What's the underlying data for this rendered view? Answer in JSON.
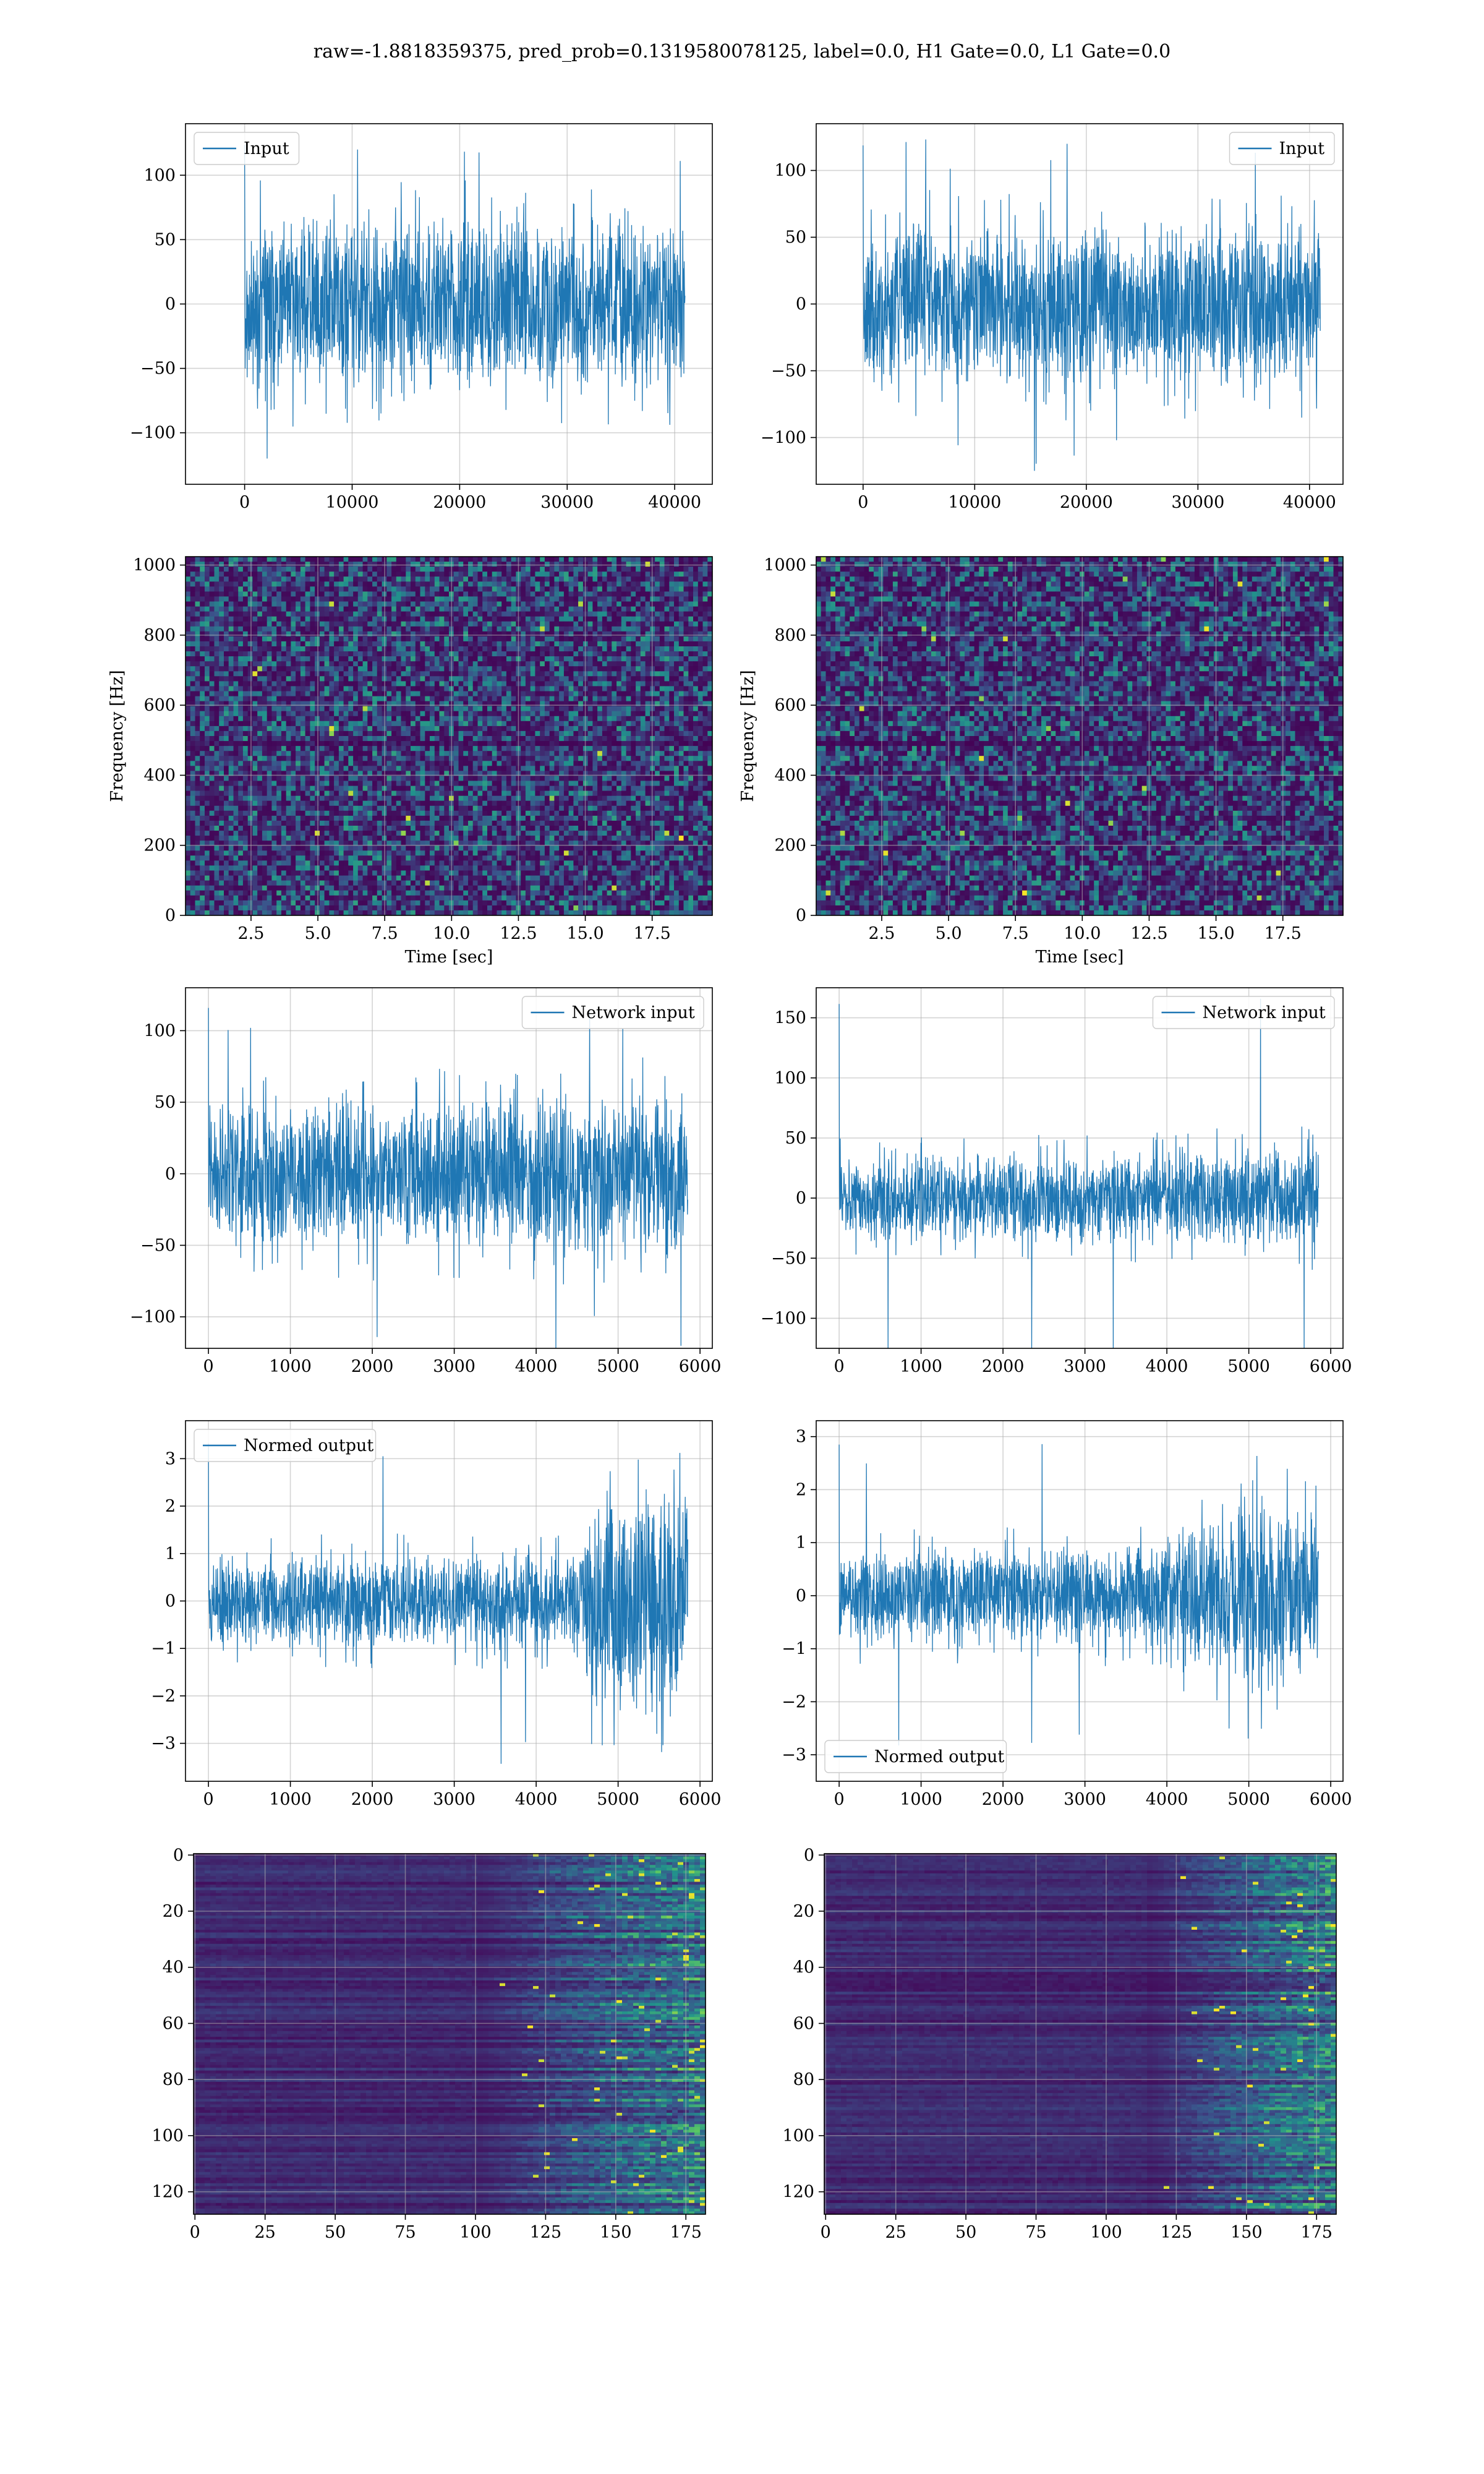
{
  "figure_title": "raw=-1.8818359375, pred_prob=0.1319580078125, label=0.0, H1 Gate=0.0, L1 Gate=0.0",
  "colors": {
    "line": "#1f77b4",
    "grid": "#b0b0b0",
    "viridis_low": "#440154",
    "viridis_mid": "#21918c",
    "viridis_high": "#fde725"
  },
  "chart_data": [
    {
      "id": "input-h1",
      "type": "line",
      "legend": "Input",
      "legend_loc": "upper-left",
      "xlim": [
        -5500,
        43500
      ],
      "ylim": [
        -140,
        140
      ],
      "xticks": [
        0,
        10000,
        20000,
        30000,
        40000
      ],
      "xtick_labels": [
        "0",
        "10000",
        "20000",
        "30000",
        "40000"
      ],
      "yticks": [
        -100,
        -50,
        0,
        50,
        100
      ],
      "ytick_labels": [
        "−100",
        "−50",
        "0",
        "50",
        "100"
      ],
      "x_range": [
        0,
        40960
      ],
      "envelope": [
        [
          0,
          60
        ],
        [
          0.5,
          60
        ],
        [
          1,
          60
        ]
      ],
      "spike_max": 130,
      "noise_seed": 11,
      "grid": true
    },
    {
      "id": "input-l1",
      "type": "line",
      "legend": "Input",
      "legend_loc": "upper-right",
      "xlim": [
        -4200,
        43000
      ],
      "ylim": [
        -135,
        135
      ],
      "xticks": [
        0,
        10000,
        20000,
        30000,
        40000
      ],
      "xtick_labels": [
        "0",
        "10000",
        "20000",
        "30000",
        "40000"
      ],
      "yticks": [
        -100,
        -50,
        0,
        50,
        100
      ],
      "ytick_labels": [
        "−100",
        "−50",
        "0",
        "50",
        "100"
      ],
      "x_range": [
        0,
        40960
      ],
      "envelope": [
        [
          0,
          55
        ],
        [
          0.5,
          55
        ],
        [
          1,
          55
        ]
      ],
      "spike_max": 125,
      "noise_seed": 23,
      "grid": true
    },
    {
      "id": "spectrogram-h1",
      "type": "heatmap",
      "xlabel": "Time [sec]",
      "ylabel": "Frequency [Hz]",
      "xlim": [
        0.05,
        19.75
      ],
      "ylim": [
        0,
        1024
      ],
      "xticks": [
        2.5,
        5,
        7.5,
        10,
        12.5,
        15,
        17.5
      ],
      "xtick_labels": [
        "2.5",
        "5.0",
        "7.5",
        "10.0",
        "12.5",
        "15.0",
        "17.5"
      ],
      "yticks": [
        0,
        200,
        400,
        600,
        800,
        1000
      ],
      "ytick_labels": [
        "0",
        "200",
        "400",
        "600",
        "800",
        "1000"
      ],
      "colormap": "viridis",
      "noise_seed": 5,
      "grid": true
    },
    {
      "id": "spectrogram-l1",
      "type": "heatmap",
      "xlabel": "Time [sec]",
      "ylabel": "Frequency [Hz]",
      "xlim": [
        0.05,
        19.75
      ],
      "ylim": [
        0,
        1024
      ],
      "xticks": [
        2.5,
        5,
        7.5,
        10,
        12.5,
        15,
        17.5
      ],
      "xtick_labels": [
        "2.5",
        "5.0",
        "7.5",
        "10.0",
        "12.5",
        "15.0",
        "17.5"
      ],
      "yticks": [
        0,
        200,
        400,
        600,
        800,
        1000
      ],
      "ytick_labels": [
        "0",
        "200",
        "400",
        "600",
        "800",
        "1000"
      ],
      "colormap": "viridis",
      "noise_seed": 9,
      "grid": true
    },
    {
      "id": "network-input-h1",
      "type": "line",
      "legend": "Network input",
      "legend_loc": "upper-right",
      "xlim": [
        -280,
        6150
      ],
      "ylim": [
        -122,
        130
      ],
      "xticks": [
        0,
        1000,
        2000,
        3000,
        4000,
        5000,
        6000
      ],
      "xtick_labels": [
        "0",
        "1000",
        "2000",
        "3000",
        "4000",
        "5000",
        "6000"
      ],
      "yticks": [
        -100,
        -50,
        0,
        50,
        100
      ],
      "ytick_labels": [
        "−100",
        "−50",
        "0",
        "50",
        "100"
      ],
      "x_range": [
        0,
        5850
      ],
      "envelope": [
        [
          0,
          45
        ],
        [
          0.5,
          48
        ],
        [
          1,
          52
        ]
      ],
      "spike_max": 122,
      "noise_seed": 31,
      "grid": true
    },
    {
      "id": "network-input-l1",
      "type": "line",
      "legend": "Network input",
      "legend_loc": "upper-right",
      "xlim": [
        -280,
        6150
      ],
      "ylim": [
        -125,
        175
      ],
      "xticks": [
        0,
        1000,
        2000,
        3000,
        4000,
        5000,
        6000
      ],
      "xtick_labels": [
        "0",
        "1000",
        "2000",
        "3000",
        "4000",
        "5000",
        "6000"
      ],
      "yticks": [
        -100,
        -50,
        0,
        50,
        100,
        150
      ],
      "ytick_labels": [
        "−100",
        "−50",
        "0",
        "50",
        "100",
        "150"
      ],
      "x_range": [
        0,
        5850
      ],
      "envelope": [
        [
          0,
          32
        ],
        [
          0.5,
          34
        ],
        [
          1,
          38
        ]
      ],
      "spike_max": 170,
      "noise_seed": 47,
      "grid": true
    },
    {
      "id": "normed-output-h1",
      "type": "line",
      "legend": "Normed output",
      "legend_loc": "upper-left",
      "xlim": [
        -280,
        6150
      ],
      "ylim": [
        -3.8,
        3.8
      ],
      "xticks": [
        0,
        1000,
        2000,
        3000,
        4000,
        5000,
        6000
      ],
      "xtick_labels": [
        "0",
        "1000",
        "2000",
        "3000",
        "4000",
        "5000",
        "6000"
      ],
      "yticks": [
        -3,
        -2,
        -1,
        0,
        1,
        2,
        3
      ],
      "ytick_labels": [
        "−3",
        "−2",
        "−1",
        "0",
        "1",
        "2",
        "3"
      ],
      "x_range": [
        0,
        5850
      ],
      "envelope": [
        [
          0,
          0.9
        ],
        [
          0.78,
          0.9
        ],
        [
          0.8,
          2.0
        ],
        [
          1,
          2.0
        ]
      ],
      "spike_max": 3.5,
      "noise_seed": 53,
      "grid": true
    },
    {
      "id": "normed-output-l1",
      "type": "line",
      "legend": "Normed output",
      "legend_loc": "lower-left",
      "xlim": [
        -280,
        6150
      ],
      "ylim": [
        -3.5,
        3.3
      ],
      "xticks": [
        0,
        1000,
        2000,
        3000,
        4000,
        5000,
        6000
      ],
      "xtick_labels": [
        "0",
        "1000",
        "2000",
        "3000",
        "4000",
        "5000",
        "6000"
      ],
      "yticks": [
        -3,
        -2,
        -1,
        0,
        1,
        2,
        3
      ],
      "ytick_labels": [
        "−3",
        "−2",
        "−1",
        "0",
        "1",
        "2",
        "3"
      ],
      "x_range": [
        0,
        5850
      ],
      "envelope": [
        [
          0,
          0.8
        ],
        [
          0.65,
          0.85
        ],
        [
          0.85,
          1.9
        ],
        [
          1,
          1.3
        ]
      ],
      "spike_max": 3.0,
      "noise_seed": 61,
      "grid": true
    },
    {
      "id": "feature-map-h1",
      "type": "heatmap",
      "inverted_y": true,
      "xlim": [
        -0.5,
        182
      ],
      "ylim": [
        128,
        -0.5
      ],
      "xticks": [
        0,
        25,
        50,
        75,
        100,
        125,
        150,
        175
      ],
      "xtick_labels": [
        "0",
        "25",
        "50",
        "75",
        "100",
        "125",
        "150",
        "175"
      ],
      "yticks": [
        0,
        20,
        40,
        60,
        80,
        100,
        120
      ],
      "ytick_labels": [
        "0",
        "20",
        "40",
        "60",
        "80",
        "100",
        "120"
      ],
      "colormap": "viridis",
      "activity_onset": 100,
      "noise_seed": 71,
      "grid": true
    },
    {
      "id": "feature-map-l1",
      "type": "heatmap",
      "inverted_y": true,
      "xlim": [
        -0.5,
        182
      ],
      "ylim": [
        128,
        -0.5
      ],
      "xticks": [
        0,
        25,
        50,
        75,
        100,
        125,
        150,
        175
      ],
      "xtick_labels": [
        "0",
        "25",
        "50",
        "75",
        "100",
        "125",
        "150",
        "175"
      ],
      "yticks": [
        0,
        20,
        40,
        60,
        80,
        100,
        120
      ],
      "ytick_labels": [
        "0",
        "20",
        "40",
        "60",
        "80",
        "100",
        "120"
      ],
      "colormap": "viridis",
      "activity_onset": 115,
      "noise_seed": 83,
      "grid": true
    }
  ]
}
